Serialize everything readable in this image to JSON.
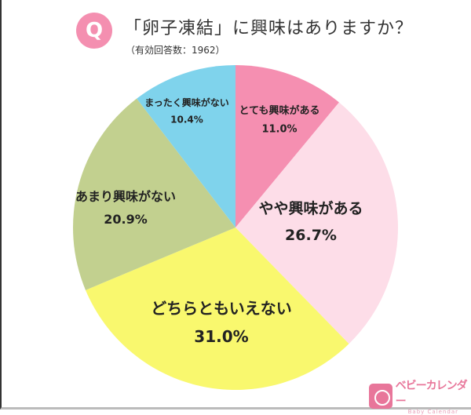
{
  "header": {
    "badge": "Q",
    "title": "「卵子凍結」に興味はありますか？",
    "subtitle": "（有効回答数：1962）"
  },
  "chart_data": {
    "type": "pie",
    "title": "「卵子凍結」に興味はありますか？",
    "start": "12 o'clock, clockwise",
    "slices": [
      {
        "label": "とても興味がある",
        "value": 11.0,
        "display": "11.0%",
        "color": "#f58fb1"
      },
      {
        "label": "やや興味がある",
        "value": 26.7,
        "display": "26.7%",
        "color": "#fddde8"
      },
      {
        "label": "どちらともいえない",
        "value": 31.0,
        "display": "31.0%",
        "color": "#f9f86e"
      },
      {
        "label": "あまり興味がない",
        "value": 20.9,
        "display": "20.9%",
        "color": "#c2d08f"
      },
      {
        "label": "まったく興味がない",
        "value": 10.4,
        "display": "10.4%",
        "color": "#7fd3ec"
      }
    ]
  },
  "logo": {
    "jp": "ベビーカレンダー",
    "en": "Baby Calendar"
  }
}
